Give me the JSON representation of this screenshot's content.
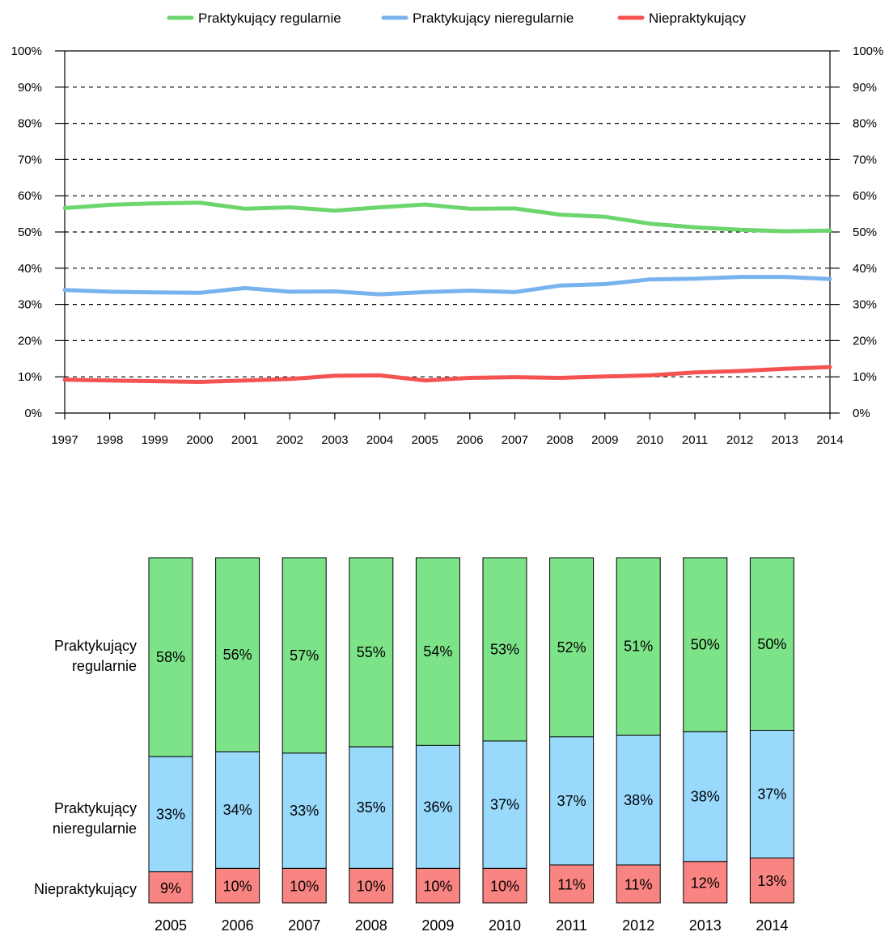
{
  "chart_data": [
    {
      "type": "line",
      "x": [
        "1997",
        "1998",
        "1999",
        "2000",
        "2001",
        "2002",
        "2003",
        "2004",
        "2005",
        "2006",
        "2007",
        "2008",
        "2009",
        "2010",
        "2011",
        "2012",
        "2013",
        "2014"
      ],
      "ylim": [
        0,
        100
      ],
      "yticks": [
        "0%",
        "10%",
        "20%",
        "30%",
        "40%",
        "50%",
        "60%",
        "70%",
        "80%",
        "90%",
        "100%"
      ],
      "grid": true,
      "legend_position": "top",
      "series": [
        {
          "name": "Praktykujący regularnie",
          "color": "#6dd56e",
          "values": [
            56.6,
            57.5,
            57.9,
            58.1,
            56.4,
            56.8,
            55.9,
            56.8,
            57.6,
            56.4,
            56.5,
            54.8,
            54.2,
            52.3,
            51.3,
            50.6,
            50.2,
            50.4
          ]
        },
        {
          "name": "Praktykujący nieregularnie",
          "color": "#78b3ee",
          "values": [
            34.0,
            33.5,
            33.3,
            33.2,
            34.5,
            33.5,
            33.6,
            32.8,
            33.4,
            33.8,
            33.4,
            35.2,
            35.6,
            36.9,
            37.1,
            37.6,
            37.6,
            37.0
          ]
        },
        {
          "name": "Niepraktykujący",
          "color": "#f55351",
          "values": [
            9.2,
            9.0,
            8.8,
            8.6,
            9.0,
            9.4,
            10.3,
            10.4,
            9.0,
            9.7,
            9.9,
            9.7,
            10.1,
            10.4,
            11.2,
            11.6,
            12.2,
            12.7
          ]
        }
      ]
    },
    {
      "type": "bar",
      "stacked": true,
      "categories": [
        "2005",
        "2006",
        "2007",
        "2008",
        "2009",
        "2010",
        "2011",
        "2012",
        "2013",
        "2014"
      ],
      "row_labels": [
        {
          "lines": [
            "Praktykujący",
            "regularnie"
          ]
        },
        {
          "lines": [
            "Praktykujący",
            "nieregularnie"
          ]
        },
        {
          "lines": [
            "Niepraktykujący"
          ]
        }
      ],
      "series": [
        {
          "name": "Niepraktykujący",
          "color": "#f88582",
          "values": [
            9.0,
            10.0,
            10.0,
            10.0,
            10.0,
            10.0,
            11.0,
            11.0,
            12.0,
            13.0
          ],
          "labels": [
            "9%",
            "10%",
            "10%",
            "10%",
            "10%",
            "10%",
            "11%",
            "11%",
            "12%",
            "13%"
          ]
        },
        {
          "name": "Praktykujący nieregularnie",
          "color": "#98d9fc",
          "values": [
            33.4,
            33.8,
            33.4,
            35.2,
            35.6,
            36.9,
            37.1,
            37.6,
            37.6,
            37.0
          ],
          "labels": [
            "33%",
            "34%",
            "33%",
            "35%",
            "36%",
            "37%",
            "37%",
            "38%",
            "38%",
            "37%"
          ]
        },
        {
          "name": "Praktykujący regularnie",
          "color": "#7de388",
          "values": [
            57.6,
            56.2,
            56.6,
            54.8,
            54.4,
            53.1,
            51.9,
            51.4,
            50.4,
            50.0
          ],
          "labels": [
            "58%",
            "56%",
            "57%",
            "55%",
            "54%",
            "53%",
            "52%",
            "51%",
            "50%",
            "50%"
          ]
        }
      ]
    }
  ]
}
